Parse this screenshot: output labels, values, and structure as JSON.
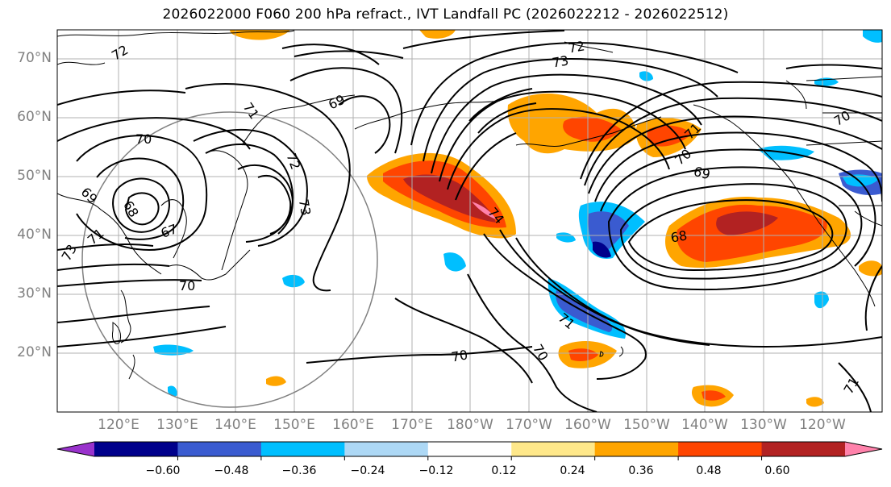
{
  "title": "2026022000 F060 200 hPa refract., IVT Landfall PC (2026022212 - 2026022512)",
  "map": {
    "projection": "PlateCarree",
    "lon_range": [
      "112°E",
      "112°W"
    ],
    "lat_range": [
      "10°N",
      "75°N"
    ],
    "gridlines": true,
    "lat_labels": [
      "70°N",
      "60°N",
      "50°N",
      "40°N",
      "30°N",
      "20°N"
    ],
    "lon_labels": [
      "120°E",
      "130°E",
      "140°E",
      "150°E",
      "160°E",
      "170°E",
      "180°W",
      "170°W",
      "160°W",
      "150°W",
      "140°W",
      "130°W",
      "120°W"
    ],
    "contour_labels": [
      "72",
      "72",
      "72",
      "73",
      "73",
      "71",
      "69",
      "70",
      "70",
      "68",
      "67",
      "69",
      "71",
      "73",
      "70",
      "71",
      "70",
      "70",
      "71",
      "69",
      "68",
      "70",
      "71",
      "74"
    ],
    "range_circle_color": "#808080",
    "contour_color": "#000000",
    "coastline_color": "#000000"
  },
  "colorbar": {
    "colors": [
      "#9932cc",
      "#00008b",
      "#3a5bd0",
      "#00bfff",
      "#add8f5",
      "#ffffff",
      "#ffe88a",
      "#ffa500",
      "#ff4500",
      "#b22222",
      "#ff82ab"
    ],
    "tick_labels": [
      "−0.60",
      "−0.48",
      "−0.36",
      "−0.24",
      "−0.12",
      "0.12",
      "0.24",
      "0.36",
      "0.48",
      "0.60"
    ],
    "extend": "both"
  }
}
